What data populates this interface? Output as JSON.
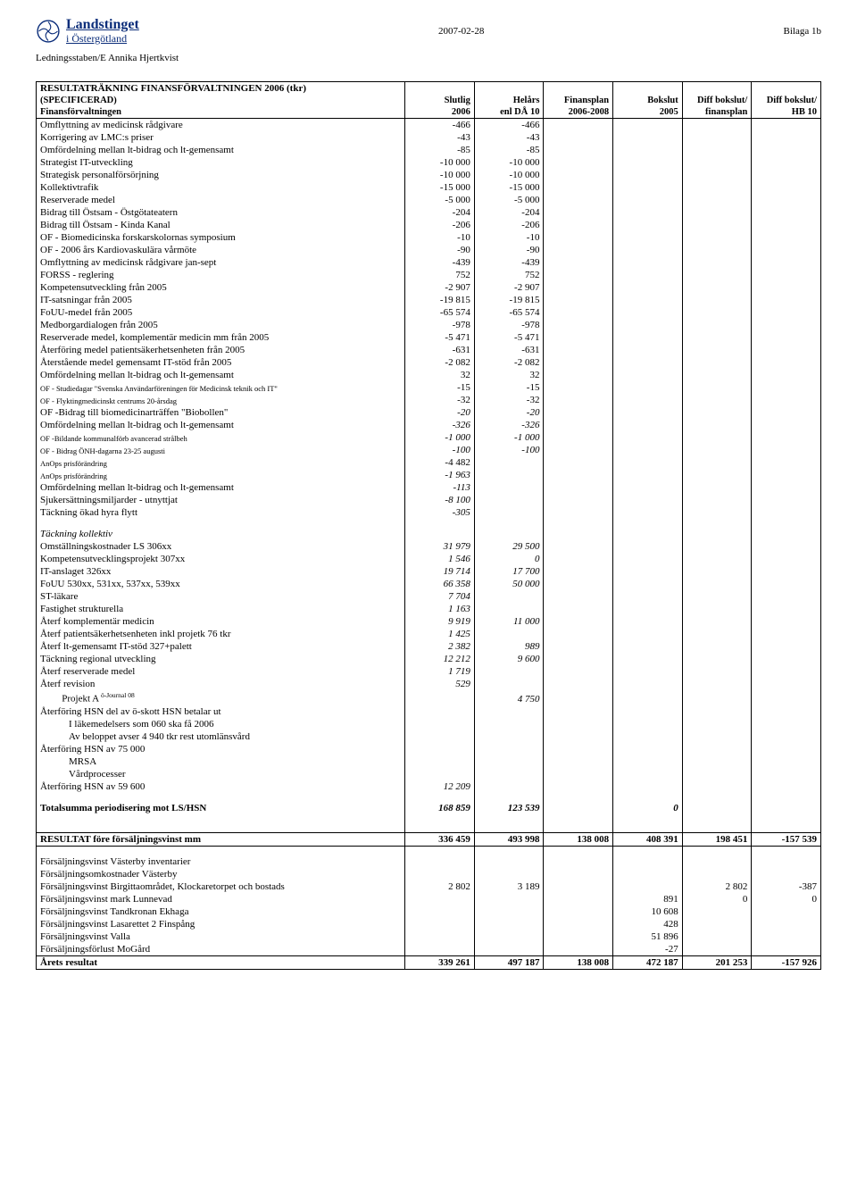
{
  "header": {
    "logo_line1": "Landstinget",
    "logo_line2": "i Östergötland",
    "date": "2007-02-28",
    "bilaga": "Bilaga 1b",
    "subhead": "Ledningsstaben/E Annika Hjertkvist"
  },
  "table": {
    "title": "RESULTATRÄKNING FINANSFÖRVALTNINGEN 2006 (tkr)",
    "head_row1": [
      "(SPECIFICERAD)",
      "Slutlig",
      "Helårs",
      "Finansplan",
      "Bokslut",
      "Diff bokslut/",
      "Diff bokslut/"
    ],
    "head_row2": [
      "Finansförvaltningen",
      "2006",
      "enl DÅ 10",
      "2006-2008",
      "2005",
      "finansplan",
      "HB 10"
    ],
    "rows": [
      {
        "label": "Omflyttning av medicinsk rådgivare",
        "c": [
          "-466",
          "-466",
          "",
          "",
          "",
          ""
        ]
      },
      {
        "label": "Korrigering av LMC:s priser",
        "c": [
          "-43",
          "-43",
          "",
          "",
          "",
          ""
        ]
      },
      {
        "label": "Omfördelning mellan lt-bidrag och lt-gemensamt",
        "c": [
          "-85",
          "-85",
          "",
          "",
          "",
          ""
        ]
      },
      {
        "label": "Strategist IT-utveckling",
        "c": [
          "-10 000",
          "-10 000",
          "",
          "",
          "",
          ""
        ]
      },
      {
        "label": "Strategisk personalförsörjning",
        "c": [
          "-10 000",
          "-10 000",
          "",
          "",
          "",
          ""
        ]
      },
      {
        "label": "Kollektivtrafik",
        "c": [
          "-15 000",
          "-15 000",
          "",
          "",
          "",
          ""
        ]
      },
      {
        "label": "Reserverade medel",
        "c": [
          "-5 000",
          "-5 000",
          "",
          "",
          "",
          ""
        ]
      },
      {
        "label": "Bidrag till Östsam - Östgötateatern",
        "c": [
          "-204",
          "-204",
          "",
          "",
          "",
          ""
        ]
      },
      {
        "label": "Bidrag till Östsam - Kinda Kanal",
        "c": [
          "-206",
          "-206",
          "",
          "",
          "",
          ""
        ]
      },
      {
        "label": "OF - Biomedicinska forskarskolornas symposium",
        "c": [
          "-10",
          "-10",
          "",
          "",
          "",
          ""
        ]
      },
      {
        "label": "OF - 2006 års Kardiovaskulära vårmöte",
        "c": [
          "-90",
          "-90",
          "",
          "",
          "",
          ""
        ]
      },
      {
        "label": "Omflyttning av medicinsk rådgivare jan-sept",
        "c": [
          "-439",
          "-439",
          "",
          "",
          "",
          ""
        ]
      },
      {
        "label": "FORSS - reglering",
        "c": [
          "752",
          "752",
          "",
          "",
          "",
          ""
        ]
      },
      {
        "label": "Kompetensutveckling från 2005",
        "c": [
          "-2 907",
          "-2 907",
          "",
          "",
          "",
          ""
        ]
      },
      {
        "label": "IT-satsningar från 2005",
        "c": [
          "-19 815",
          "-19 815",
          "",
          "",
          "",
          ""
        ]
      },
      {
        "label": "FoUU-medel från 2005",
        "c": [
          "-65 574",
          "-65 574",
          "",
          "",
          "",
          ""
        ]
      },
      {
        "label": "Medborgardialogen från 2005",
        "c": [
          "-978",
          "-978",
          "",
          "",
          "",
          ""
        ]
      },
      {
        "label": "Reserverade medel, komplementär medicin mm från 2005",
        "c": [
          "-5 471",
          "-5 471",
          "",
          "",
          "",
          ""
        ]
      },
      {
        "label": "Återföring medel patientsäkerhetsenheten från 2005",
        "c": [
          "-631",
          "-631",
          "",
          "",
          "",
          ""
        ]
      },
      {
        "label": "Återstående medel gemensamt IT-stöd från 2005",
        "c": [
          "-2 082",
          "-2 082",
          "",
          "",
          "",
          ""
        ]
      },
      {
        "label": "Omfördelning mellan lt-bidrag och lt-gemensamt",
        "c": [
          "32",
          "32",
          "",
          "",
          "",
          ""
        ]
      },
      {
        "label": "OF - Studiedagar \"Svenska Användarföreningen för Medicinsk teknik och IT\"",
        "tiny": true,
        "c": [
          "-15",
          "-15",
          "",
          "",
          "",
          ""
        ]
      },
      {
        "label": "OF - Flyktingmedicinskt centrums 20-årsdag",
        "tiny": true,
        "c": [
          "-32",
          "-32",
          "",
          "",
          "",
          ""
        ]
      },
      {
        "label": "OF -Bidrag till biomedicinarträffen \"Biobollen\"",
        "c": [
          "-20",
          "-20",
          "",
          "",
          "",
          ""
        ],
        "italic_cols": true
      },
      {
        "label": "Omfördelning mellan lt-bidrag och lt-gemensamt",
        "c": [
          "-326",
          "-326",
          "",
          "",
          "",
          ""
        ],
        "italic_cols": true
      },
      {
        "label": "OF -Bildande kommunalförb avancerad strålbeh",
        "tiny": true,
        "c": [
          "-1 000",
          "-1 000",
          "",
          "",
          "",
          ""
        ],
        "italic_cols": true
      },
      {
        "label": "OF - Bidrag ÖNH-dagarna 23-25 augusti",
        "tiny": true,
        "c": [
          "-100",
          "-100",
          "",
          "",
          "",
          ""
        ],
        "italic_cols": true
      },
      {
        "label": "AnOps prisförändring",
        "tiny": true,
        "c": [
          "-4 482",
          "",
          "",
          "",
          "",
          ""
        ]
      },
      {
        "label": "AnOps prisförändring",
        "tiny": true,
        "c": [
          "-1 963",
          "",
          "",
          "",
          "",
          ""
        ],
        "italic_cols": true
      },
      {
        "label": "Omfördelning mellan lt-bidrag och lt-gemensamt",
        "c": [
          "-113",
          "",
          "",
          "",
          "",
          ""
        ],
        "italic_cols": true
      },
      {
        "label": "Sjukersättningsmiljarder - utnyttjat",
        "c": [
          "-8 100",
          "",
          "",
          "",
          "",
          ""
        ],
        "italic_cols": true
      },
      {
        "label": "Täckning ökad hyra flytt",
        "c": [
          "-305",
          "",
          "",
          "",
          "",
          ""
        ],
        "italic_cols": true
      }
    ],
    "section2_title": "Täckning kollektiv",
    "rows2": [
      {
        "label": "Omställningskostnader LS 306xx",
        "c": [
          "31 979",
          "29 500",
          "",
          "",
          "",
          ""
        ],
        "italic_cols": true
      },
      {
        "label": "Kompetensutvecklingsprojekt 307xx",
        "c": [
          "1 546",
          "0",
          "",
          "",
          "",
          ""
        ],
        "italic_cols": true
      },
      {
        "label": "IT-anslaget 326xx",
        "c": [
          "19 714",
          "17 700",
          "",
          "",
          "",
          ""
        ],
        "italic_cols": true
      },
      {
        "label": "FoUU 530xx, 531xx, 537xx, 539xx",
        "c": [
          "66 358",
          "50 000",
          "",
          "",
          "",
          ""
        ],
        "italic_cols": true
      },
      {
        "label": "ST-läkare",
        "c": [
          "7 704",
          "",
          "",
          "",
          "",
          ""
        ],
        "italic_cols": true
      },
      {
        "label": "Fastighet strukturella",
        "c": [
          "1 163",
          "",
          "",
          "",
          "",
          ""
        ],
        "italic_cols": true
      },
      {
        "label": "Återf komplementär medicin",
        "c": [
          "9 919",
          "11 000",
          "",
          "",
          "",
          ""
        ],
        "italic_cols": true
      },
      {
        "label": "Återf patientsäkerhetsenheten inkl projetk 76 tkr",
        "c": [
          "1 425",
          "",
          "",
          "",
          "",
          ""
        ],
        "italic_cols": true
      },
      {
        "label": "Återf lt-gemensamt IT-stöd 327+palett",
        "c": [
          "2 382",
          "989",
          "",
          "",
          "",
          ""
        ],
        "italic_cols": true
      },
      {
        "label": "Täckning regional utveckling",
        "c": [
          "12 212",
          "9 600",
          "",
          "",
          "",
          ""
        ],
        "italic_cols": true
      },
      {
        "label": "Återf reserverade medel",
        "c": [
          "1 719",
          "",
          "",
          "",
          "",
          ""
        ],
        "italic_cols": true
      }
    ],
    "aterf_revision": {
      "label": "Återf revision",
      "c": [
        "529",
        "",
        "",
        "",
        "",
        ""
      ],
      "italic_cols": true
    },
    "projekt_a_label": "Projekt A",
    "projekt_a_sup": "ö-Journal 08",
    "projekt_a_c": [
      "",
      "4 750",
      "",
      "",
      "",
      ""
    ],
    "rows3": [
      {
        "label": "Återföring HSN del av ö-skott HSN betalar ut",
        "c": [
          "",
          "",
          "",
          "",
          "",
          ""
        ]
      },
      {
        "label": "I läkemedelsers som 060 ska få 2006",
        "indent": 2,
        "c": [
          "",
          "",
          "",
          "",
          "",
          ""
        ]
      },
      {
        "label": "Av beloppet avser 4 940 tkr rest utomlänsvård",
        "indent": 2,
        "c": [
          "",
          "",
          "",
          "",
          "",
          ""
        ]
      },
      {
        "label": "Återföring HSN av 75 000",
        "c": [
          "",
          "",
          "",
          "",
          "",
          ""
        ]
      },
      {
        "label": "MRSA",
        "indent": 2,
        "c": [
          "",
          "",
          "",
          "",
          "",
          ""
        ]
      },
      {
        "label": "Vårdprocesser",
        "indent": 2,
        "c": [
          "",
          "",
          "",
          "",
          "",
          ""
        ]
      },
      {
        "label": "Återföring HSN av 59 600",
        "c": [
          "12 209",
          "",
          "",
          "",
          "",
          ""
        ],
        "italic_cols": true
      }
    ],
    "totalsumma": {
      "label": "Totalsumma periodisering mot LS/HSN",
      "c": [
        "168 859",
        "123 539",
        "",
        "0",
        "",
        ""
      ]
    },
    "resultat_fore": {
      "label": "RESULTAT före försäljningsvinst mm",
      "c": [
        "336 459",
        "493 998",
        "138 008",
        "408 391",
        "198 451",
        "-157 539"
      ]
    },
    "rows4": [
      {
        "label": "Försäljningsvinst Västerby inventarier",
        "c": [
          "",
          "",
          "",
          "",
          "",
          ""
        ]
      },
      {
        "label": "Försäljningsomkostnader Västerby",
        "c": [
          "",
          "",
          "",
          "",
          "",
          ""
        ]
      },
      {
        "label": "Försäljningsvinst Birgittaområdet, Klockaretorpet och bostads",
        "c": [
          "2 802",
          "3 189",
          "",
          "",
          "2 802",
          "-387"
        ]
      },
      {
        "label": "Försäljningsvinst mark Lunnevad",
        "c": [
          "",
          "",
          "",
          "891",
          "0",
          "0"
        ]
      },
      {
        "label": "Försäljningsvinst Tandkronan Ekhaga",
        "c": [
          "",
          "",
          "",
          "10 608",
          "",
          ""
        ]
      },
      {
        "label": "Försäljningsvinst Lasarettet 2 Finspång",
        "c": [
          "",
          "",
          "",
          "428",
          "",
          ""
        ]
      },
      {
        "label": "Försäljningsvinst Valla",
        "c": [
          "",
          "",
          "",
          "51 896",
          "",
          ""
        ]
      },
      {
        "label": "Försäljningsförlust MoGård",
        "c": [
          "",
          "",
          "",
          "-27",
          "",
          ""
        ]
      }
    ],
    "arets_resultat": {
      "label": "Årets resultat",
      "c": [
        "339 261",
        "497 187",
        "138 008",
        "472 187",
        "201 253",
        "-157 926"
      ]
    }
  },
  "colors": {
    "text": "#000000",
    "logo": "#0b2d7a",
    "border": "#000000",
    "background": "#ffffff"
  }
}
